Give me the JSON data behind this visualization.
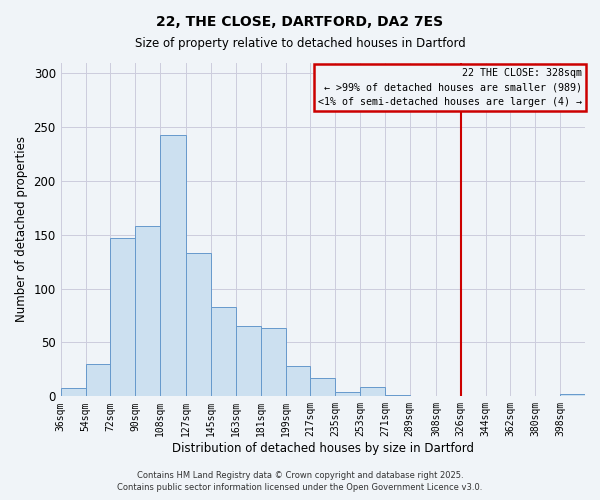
{
  "title": "22, THE CLOSE, DARTFORD, DA2 7ES",
  "subtitle": "Size of property relative to detached houses in Dartford",
  "xlabel": "Distribution of detached houses by size in Dartford",
  "ylabel": "Number of detached properties",
  "bin_labels": [
    "36sqm",
    "54sqm",
    "72sqm",
    "90sqm",
    "108sqm",
    "127sqm",
    "145sqm",
    "163sqm",
    "181sqm",
    "199sqm",
    "217sqm",
    "235sqm",
    "253sqm",
    "271sqm",
    "289sqm",
    "308sqm",
    "326sqm",
    "344sqm",
    "362sqm",
    "380sqm",
    "398sqm"
  ],
  "bar_heights": [
    8,
    30,
    147,
    158,
    243,
    133,
    83,
    65,
    63,
    28,
    17,
    4,
    9,
    1,
    0,
    0,
    0,
    0,
    0,
    0,
    2
  ],
  "bar_color": "#cce0f0",
  "bar_edge_color": "#6699cc",
  "marker_color": "#cc0000",
  "legend_title": "22 THE CLOSE: 328sqm",
  "legend_line1": "← >99% of detached houses are smaller (989)",
  "legend_line2": "<1% of semi-detached houses are larger (4) →",
  "footnote1": "Contains HM Land Registry data © Crown copyright and database right 2025.",
  "footnote2": "Contains public sector information licensed under the Open Government Licence v3.0.",
  "ylim": [
    0,
    310
  ],
  "yticks": [
    0,
    50,
    100,
    150,
    200,
    250,
    300
  ],
  "background_color": "#f0f4f8",
  "grid_color": "#ccccdd"
}
